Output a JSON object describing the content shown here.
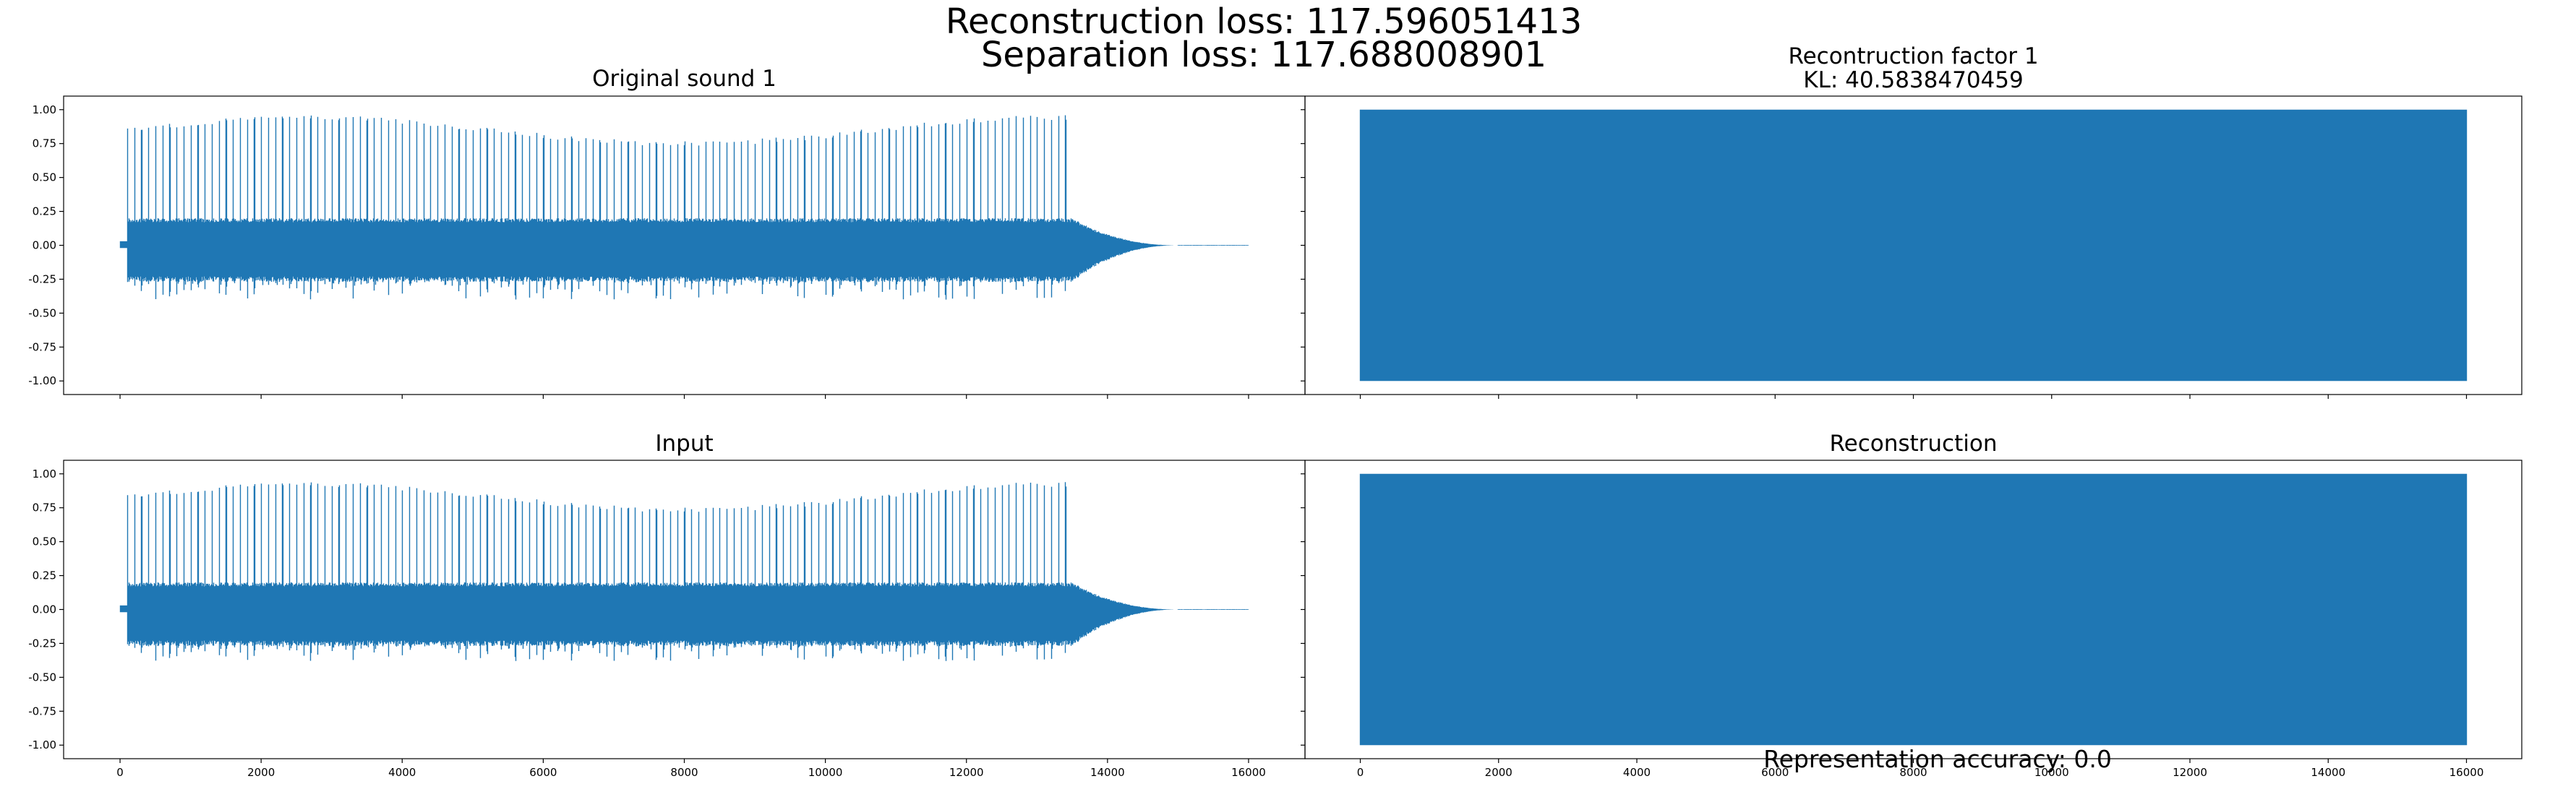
{
  "figure": {
    "suptitle_lines": [
      "Reconstruction loss: 117.596051413",
      "Separation loss: 117.688008901"
    ],
    "footer": "Representation accuracy: 0.0",
    "colors": {
      "series": "#1f77b4",
      "axes": "#000000",
      "background": "#ffffff"
    }
  },
  "chart_data": [
    {
      "type": "line",
      "title_lines": [
        "Original sound 1"
      ],
      "xlim": [
        -800,
        16800
      ],
      "ylim": [
        -1.1,
        1.1
      ],
      "xticks": [
        0,
        2000,
        4000,
        6000,
        8000,
        10000,
        12000,
        14000,
        16000
      ],
      "xtick_labels": [],
      "yticks": [
        1.0,
        0.75,
        0.5,
        0.25,
        0.0,
        -0.25,
        -0.5,
        -0.75,
        -1.0
      ],
      "ytick_labels": [
        "1.00",
        "0.75",
        "0.50",
        "0.25",
        "0.00",
        "-0.25",
        "-0.50",
        "-0.75",
        "-1.00"
      ],
      "signal": {
        "kind": "decaying-oscillation",
        "n_samples": 16000,
        "onset": 100,
        "peak_positive": 0.96,
        "peak_negative": -0.4,
        "body_amplitude": 0.2,
        "sustain_end": 13500,
        "decay_end": 15000,
        "spike_period": 100
      }
    },
    {
      "type": "line",
      "title_lines": [
        "Recontruction factor 1",
        "KL: 40.5838470459"
      ],
      "xlim": [
        -800,
        16800
      ],
      "ylim": [
        -1.1,
        1.1
      ],
      "xticks": [
        0,
        2000,
        4000,
        6000,
        8000,
        10000,
        12000,
        14000,
        16000
      ],
      "xtick_labels": [],
      "yticks": [
        1.0,
        0.75,
        0.5,
        0.25,
        0.0,
        -0.25,
        -0.5,
        -0.75,
        -1.0
      ],
      "ytick_labels": [],
      "signal": {
        "kind": "full-scale-noise",
        "n_samples": 16000,
        "min": -1.0,
        "max": 1.0
      }
    },
    {
      "type": "line",
      "title_lines": [
        "Input"
      ],
      "xlim": [
        -800,
        16800
      ],
      "ylim": [
        -1.1,
        1.1
      ],
      "xticks": [
        0,
        2000,
        4000,
        6000,
        8000,
        10000,
        12000,
        14000,
        16000
      ],
      "xtick_labels": [
        "0",
        "2000",
        "4000",
        "6000",
        "8000",
        "10000",
        "12000",
        "14000",
        "16000"
      ],
      "yticks": [
        1.0,
        0.75,
        0.5,
        0.25,
        0.0,
        -0.25,
        -0.5,
        -0.75,
        -1.0
      ],
      "ytick_labels": [
        "1.00",
        "0.75",
        "0.50",
        "0.25",
        "0.00",
        "-0.25",
        "-0.50",
        "-0.75",
        "-1.00"
      ],
      "signal": {
        "kind": "decaying-oscillation",
        "n_samples": 16000,
        "onset": 100,
        "peak_positive": 0.94,
        "peak_negative": -0.38,
        "body_amplitude": 0.2,
        "sustain_end": 13500,
        "decay_end": 15000,
        "spike_period": 100
      }
    },
    {
      "type": "line",
      "title_lines": [
        "Reconstruction"
      ],
      "xlim": [
        -800,
        16800
      ],
      "ylim": [
        -1.1,
        1.1
      ],
      "xticks": [
        0,
        2000,
        4000,
        6000,
        8000,
        10000,
        12000,
        14000,
        16000
      ],
      "xtick_labels": [
        "0",
        "2000",
        "4000",
        "6000",
        "8000",
        "10000",
        "12000",
        "14000",
        "16000"
      ],
      "yticks": [
        1.0,
        0.75,
        0.5,
        0.25,
        0.0,
        -0.25,
        -0.5,
        -0.75,
        -1.0
      ],
      "ytick_labels": [],
      "signal": {
        "kind": "full-scale-noise",
        "n_samples": 16000,
        "min": -1.0,
        "max": 1.0
      }
    }
  ]
}
